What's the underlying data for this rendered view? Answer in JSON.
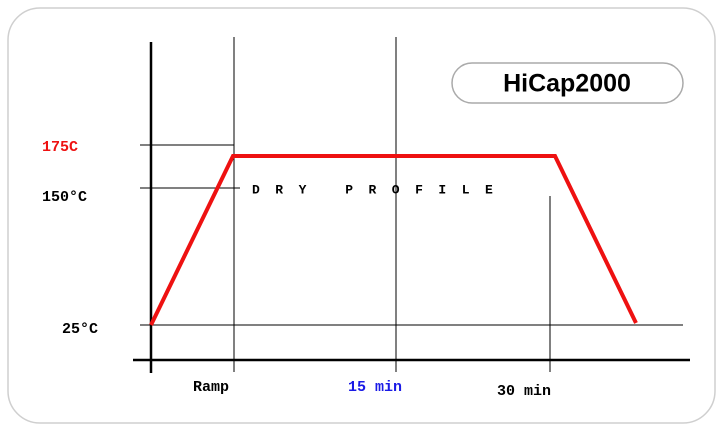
{
  "badge": "HiCap2000",
  "title": "DRY PROFILE",
  "temperatures": [
    "175C",
    "150°C",
    "25°C"
  ],
  "times": [
    "Ramp",
    "15 min",
    "30 min"
  ]
}
